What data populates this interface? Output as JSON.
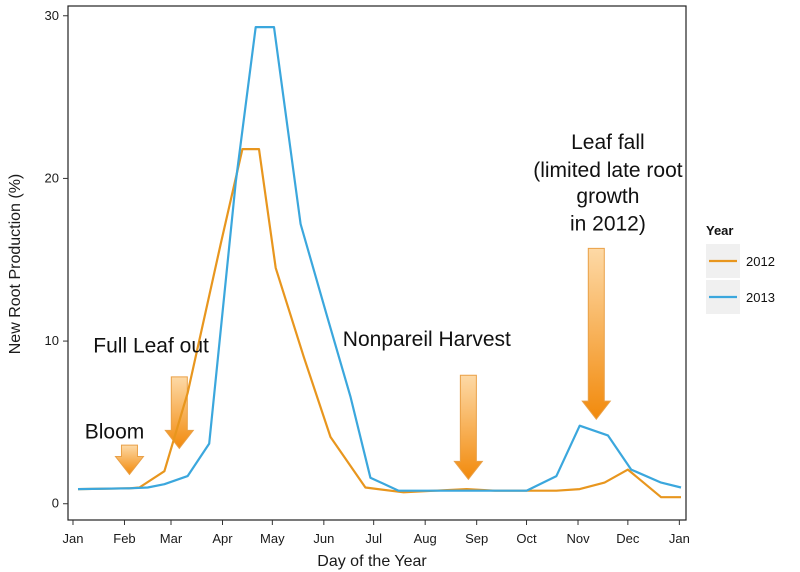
{
  "chart_data": {
    "type": "line",
    "xlabel": "Day of the Year",
    "ylabel": "New Root Production (%)",
    "x_tick_labels": [
      "Jan",
      "Feb",
      "Mar",
      "Apr",
      "May",
      "Jun",
      "Jul",
      "Aug",
      "Sep",
      "Oct",
      "Nov",
      "Dec",
      "Jan"
    ],
    "x_tick_values": [
      1,
      32,
      60,
      91,
      121,
      152,
      182,
      213,
      244,
      274,
      305,
      335,
      366
    ],
    "xlim": [
      -2,
      370
    ],
    "ylim": [
      -1.0,
      30.6
    ],
    "y_ticks": [
      0,
      10,
      20,
      30
    ],
    "y_tick_labels": [
      "0",
      "10",
      "20",
      "30"
    ],
    "grid": false,
    "legend": {
      "title": "Year",
      "placement": "right"
    },
    "series": [
      {
        "name": "2012",
        "color": "#E8961E",
        "x": [
          4,
          35,
          41,
          56,
          70,
          90,
          103,
          113,
          123,
          140,
          156,
          177,
          200,
          219,
          238,
          255,
          272,
          292,
          306,
          321,
          335,
          355,
          367
        ],
        "y": [
          0.9,
          0.95,
          1.0,
          2.0,
          6.8,
          16.0,
          21.8,
          21.8,
          14.5,
          9.0,
          4.1,
          1.0,
          0.7,
          0.8,
          0.9,
          0.8,
          0.8,
          0.8,
          0.9,
          1.3,
          2.1,
          0.4,
          0.4
        ]
      },
      {
        "name": "2013",
        "color": "#3BA7DD",
        "x": [
          4,
          35,
          46,
          56,
          70,
          83,
          99,
          111,
          122,
          138,
          154,
          168,
          180,
          197,
          219,
          241,
          262,
          274,
          292,
          306,
          323,
          337,
          355,
          367
        ],
        "y": [
          0.9,
          0.95,
          1.0,
          1.2,
          1.7,
          3.7,
          19.8,
          29.3,
          29.3,
          17.2,
          11.5,
          6.6,
          1.6,
          0.8,
          0.8,
          0.8,
          0.8,
          0.8,
          1.7,
          4.8,
          4.2,
          2.1,
          1.3,
          1.0
        ]
      }
    ],
    "annotations": [
      {
        "text": "Bloom",
        "data_x": 26,
        "data_y": 4.0
      },
      {
        "text": "Full Leaf out",
        "data_x": 48,
        "data_y": 9.3
      },
      {
        "text": "Nonpareil Harvest",
        "data_x": 214,
        "data_y": 9.7
      },
      {
        "text": "Leaf fall",
        "data_x": 323,
        "data_y": 21.8
      },
      {
        "text": "(limited late root",
        "data_x": 323,
        "data_y": 20.1
      },
      {
        "text": "growth",
        "data_x": 323,
        "data_y": 18.5
      },
      {
        "text": "in 2012)",
        "data_x": 323,
        "data_y": 16.8
      }
    ],
    "arrows": [
      {
        "data_x": 35,
        "y_from": 3.6,
        "y_to": 1.8
      },
      {
        "data_x": 65,
        "y_from": 7.8,
        "y_to": 3.4
      },
      {
        "data_x": 239,
        "y_from": 7.9,
        "y_to": 1.5
      },
      {
        "data_x": 316,
        "y_from": 15.7,
        "y_to": 5.2
      }
    ]
  }
}
